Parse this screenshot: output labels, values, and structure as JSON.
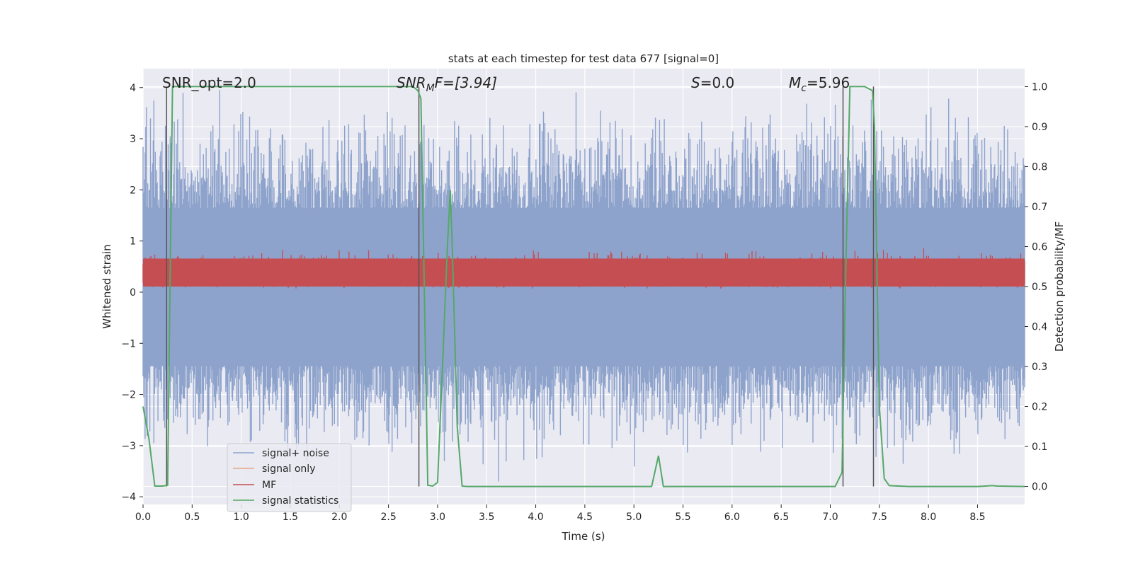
{
  "chart_data": {
    "type": "line",
    "title": "stats at each timestep for test data 677 [signal=0]",
    "xlabel": "Time (s)",
    "ylabel_left": "Whitened strain",
    "ylabel_right": "Detection probability/MF",
    "xlim": [
      0.0,
      8.98
    ],
    "ylim_left": [
      -4.15,
      4.37
    ],
    "ylim_right": [
      -0.045,
      1.045
    ],
    "x_ticks": [
      0.0,
      0.5,
      1.0,
      1.5,
      2.0,
      2.5,
      3.0,
      3.5,
      4.0,
      4.5,
      5.0,
      5.5,
      6.0,
      6.5,
      7.0,
      7.5,
      8.0,
      8.5
    ],
    "x_tick_labels": [
      "0.0",
      "0.5",
      "1.0",
      "1.5",
      "2.0",
      "2.5",
      "3.0",
      "3.5",
      "4.0",
      "4.5",
      "5.0",
      "5.5",
      "6.0",
      "6.5",
      "7.0",
      "7.5",
      "8.0",
      "8.5"
    ],
    "y_left_ticks": [
      4,
      3,
      2,
      1,
      0,
      -1,
      -2,
      -3,
      -4
    ],
    "y_left_tick_labels": [
      "4",
      "3",
      "2",
      "1",
      "0",
      "−1",
      "−2",
      "−3",
      "−4"
    ],
    "y_right_ticks": [
      1.0,
      0.9,
      0.8,
      0.7,
      0.6,
      0.5,
      0.4,
      0.3,
      0.2,
      0.1,
      0.0
    ],
    "y_right_tick_labels": [
      "1.0",
      "0.9",
      "0.8",
      "0.7",
      "0.6",
      "0.5",
      "0.4",
      "0.3",
      "0.2",
      "0.1",
      "0.0"
    ],
    "grid": true,
    "annotations": {
      "snr_opt": "SNR_opt=2.0",
      "snr_mf_base": "SNR",
      "snr_mf_sub": "M",
      "snr_mf_rest": "F=[3.94]",
      "s_label": "S",
      "s_value": "=0.0",
      "mc_base": "M",
      "mc_sub": "c",
      "mc_value": "=5.96"
    },
    "legend": {
      "position": "lower-left",
      "entries": [
        "signal+ noise",
        "signal only",
        "MF",
        "signal statistics"
      ]
    },
    "colors": {
      "noise": "#8ea3cc",
      "signal_only": "#e8a58a",
      "mf": "#c44e52",
      "stats": "#55a868",
      "vlines": "#555555",
      "background": "#eaeaf2"
    },
    "noise_series": {
      "name": "signal+ noise",
      "band": [
        -1.45,
        1.65
      ],
      "description_values": "dense whitened noise, peaks to about 4.0 and troughs to about -3.75"
    },
    "mf_series": {
      "name": "MF",
      "axis": "right",
      "band": [
        0.5,
        0.57
      ],
      "peak_max": 0.6
    },
    "stats_series": {
      "name": "signal statistics",
      "axis": "right",
      "x": [
        0.0,
        0.06,
        0.12,
        0.2,
        0.25,
        0.3,
        0.35,
        0.6,
        1.0,
        1.5,
        2.0,
        2.5,
        2.6,
        2.75,
        2.8,
        2.83,
        2.9,
        2.95,
        3.0,
        3.05,
        3.1,
        3.13,
        3.15,
        3.2,
        3.25,
        3.3,
        3.5,
        4.0,
        4.5,
        5.0,
        5.18,
        5.25,
        5.3,
        5.5,
        6.0,
        6.5,
        7.0,
        7.05,
        7.12,
        7.15,
        7.2,
        7.25,
        7.35,
        7.43,
        7.45,
        7.5,
        7.55,
        7.6,
        7.8,
        8.0,
        8.5,
        8.65,
        8.7,
        8.98
      ],
      "y": [
        0.2,
        0.12,
        0.001,
        0.001,
        0.003,
        1.0,
        1.0,
        1.0,
        1.0,
        1.0,
        1.0,
        1.0,
        1.0,
        1.0,
        0.99,
        0.97,
        0.003,
        0.001,
        0.01,
        0.3,
        0.6,
        0.74,
        0.6,
        0.15,
        0.001,
        0.0,
        0.0,
        0.0,
        0.0,
        0.0,
        0.0,
        0.077,
        0.0,
        0.0,
        0.0,
        0.0,
        0.0,
        0.0,
        0.035,
        0.45,
        1.0,
        1.0,
        1.0,
        0.99,
        0.9,
        0.2,
        0.02,
        0.002,
        0.0,
        0.0,
        0.0,
        0.002,
        0.001,
        0.0
      ]
    },
    "vertical_lines": {
      "x": [
        0.24,
        2.81,
        7.13,
        7.44
      ],
      "y_range_right": [
        0.0,
        1.0
      ]
    }
  }
}
